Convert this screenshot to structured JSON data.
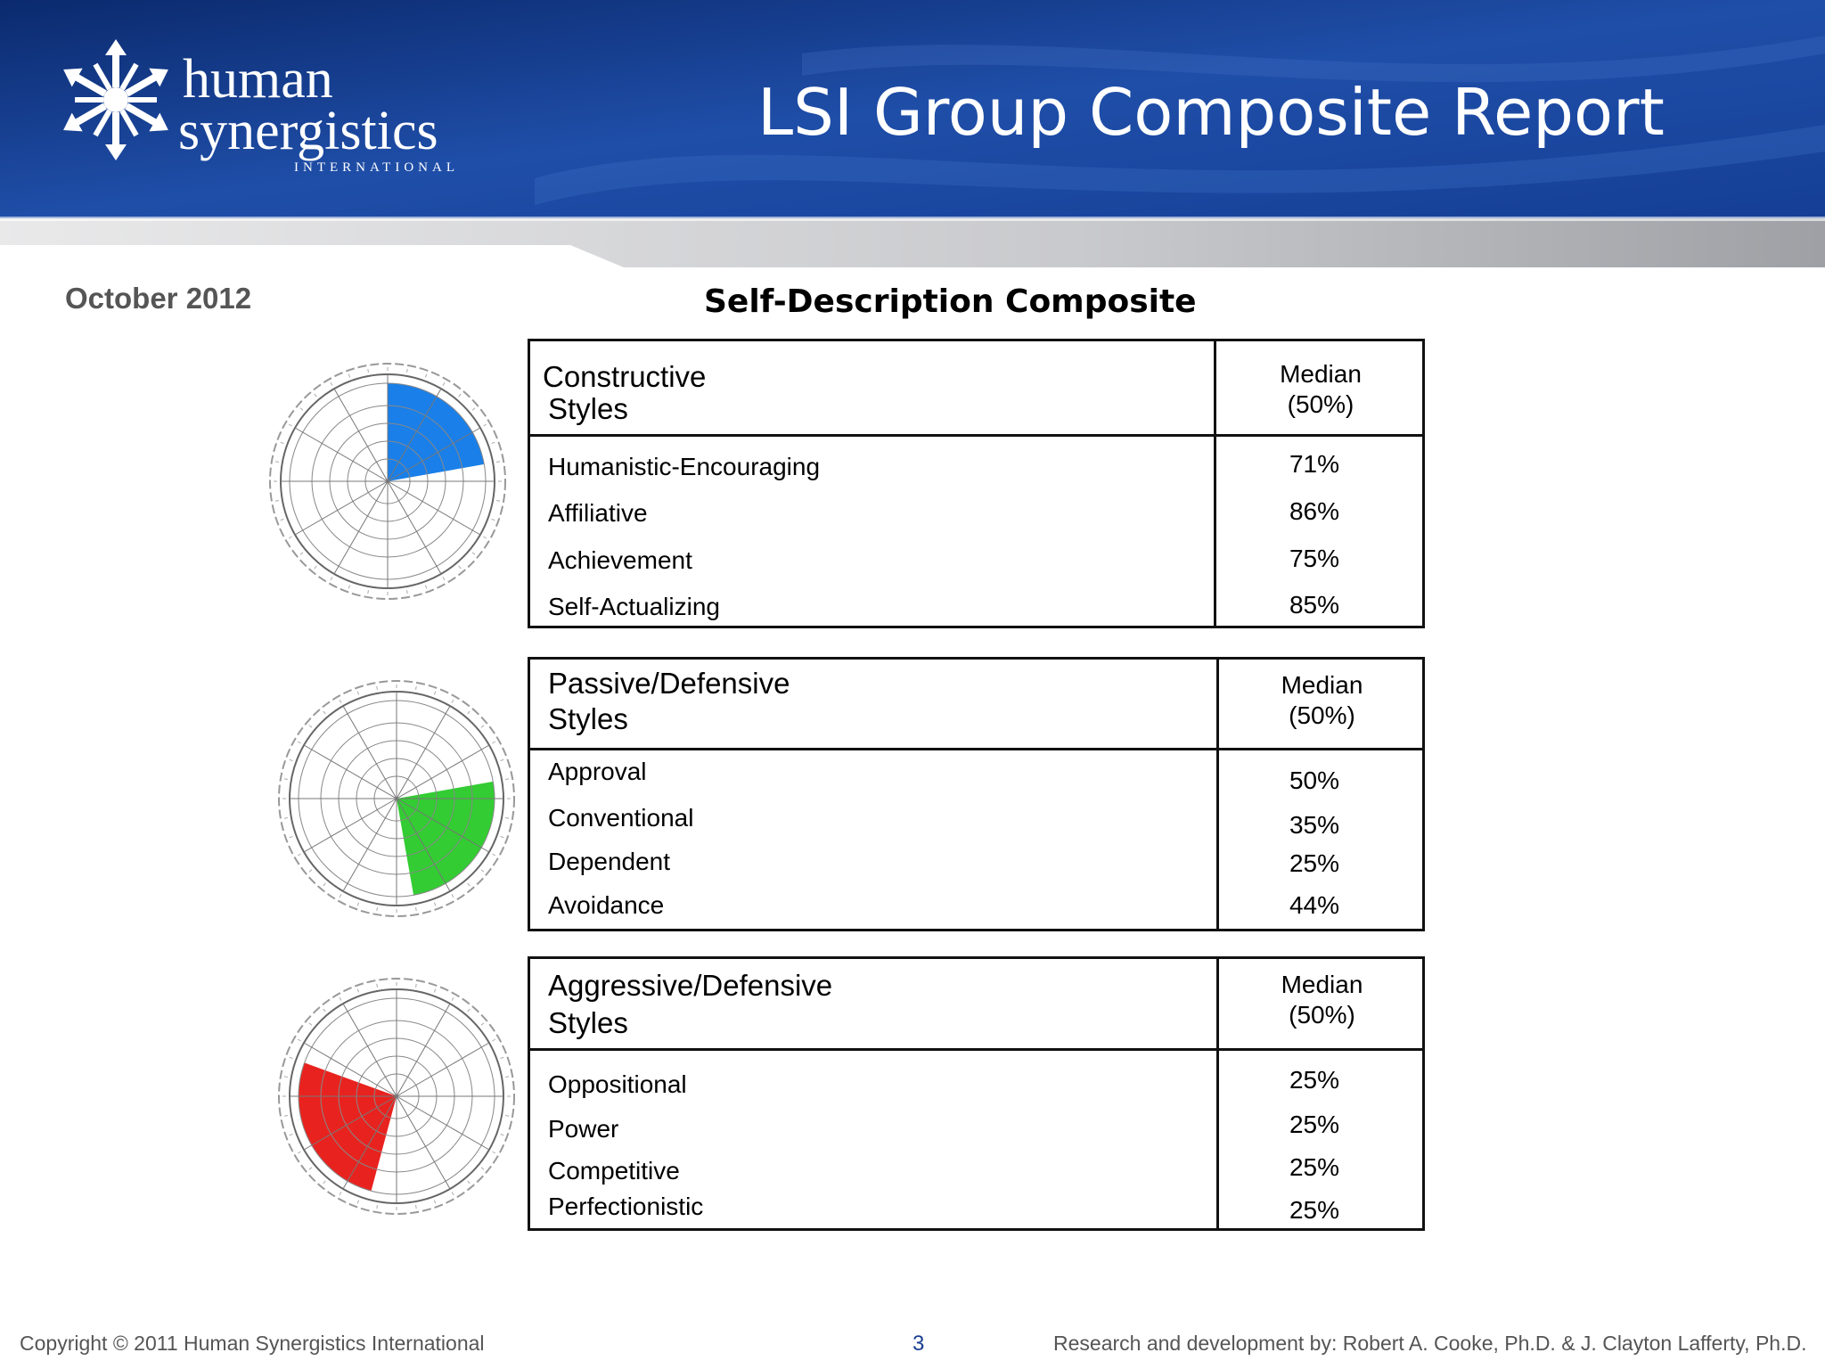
{
  "header": {
    "logo_line1": "human",
    "logo_line2": "synergistics",
    "logo_tag": "INTERNATIONAL",
    "report_title": "LSI Group Composite Report"
  },
  "date": "October 2012",
  "section_title": "Self-Description Composite",
  "clusters": [
    {
      "title_line1": "Constructive",
      "title_line2": "Styles",
      "median_line1": "Median",
      "median_line2": "(50%)",
      "wheel_color": "#1a7fe8",
      "rows": [
        {
          "label": "Humanistic-Encouraging",
          "value": "71%"
        },
        {
          "label": "Affiliative",
          "value": "86%"
        },
        {
          "label": "Achievement",
          "value": "75%"
        },
        {
          "label": "Self-Actualizing",
          "value": "85%"
        }
      ]
    },
    {
      "title_line1": "Passive/Defensive",
      "title_line2": "Styles",
      "median_line1": "Median",
      "median_line2": "(50%)",
      "wheel_color": "#33cc33",
      "rows": [
        {
          "label": "Approval",
          "value": "50%"
        },
        {
          "label": "Conventional",
          "value": "35%"
        },
        {
          "label": "Dependent",
          "value": "25%"
        },
        {
          "label": "Avoidance",
          "value": "44%"
        }
      ]
    },
    {
      "title_line1": "Aggressive/Defensive",
      "title_line2": "Styles",
      "median_line1": "Median",
      "median_line2": "(50%)",
      "wheel_color": "#e8231f",
      "rows": [
        {
          "label": "Oppositional",
          "value": "25%"
        },
        {
          "label": "Power",
          "value": "25%"
        },
        {
          "label": "Competitive",
          "value": "25%"
        },
        {
          "label": "Perfectionistic",
          "value": "25%"
        }
      ]
    }
  ],
  "footer": {
    "copyright": "Copyright © 2011 Human Synergistics International",
    "page_number": "3",
    "credit": "Research and development by: Robert A. Cooke, Ph.D. & J. Clayton Lafferty, Ph.D."
  }
}
